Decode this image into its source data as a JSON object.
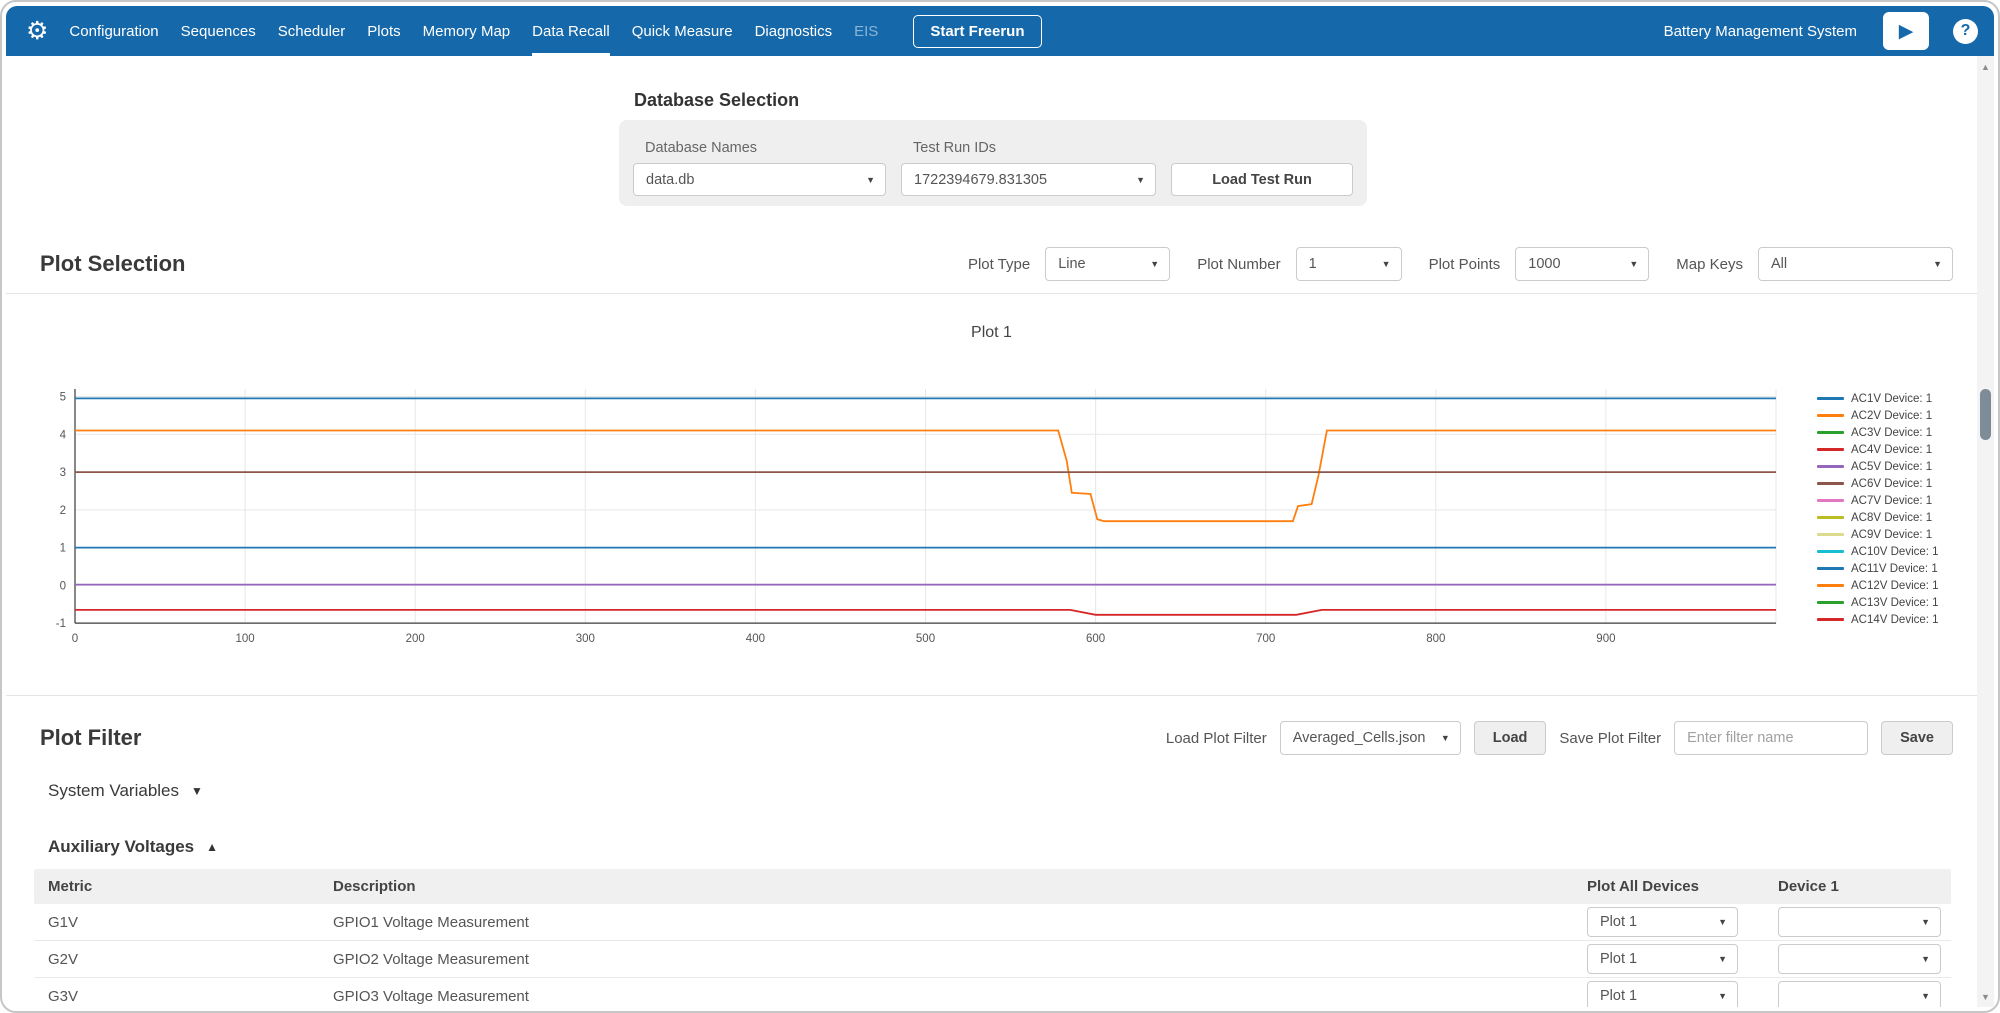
{
  "icons": {
    "gear": "⚙",
    "play": "▶",
    "help": "?",
    "caret_down": "▼",
    "collapse_expanded": "▲",
    "collapse_collapsed": "▼",
    "scroll_up": "▲",
    "scroll_down": "▼"
  },
  "colors": {
    "navbar_blue": "#1568a9",
    "panel_gray": "#efefef",
    "grid_gray": "#e7e7e7"
  },
  "navbar": {
    "brand": "Battery Management System",
    "start_freerun": "Start Freerun",
    "items": [
      {
        "label": "Configuration",
        "active": false,
        "disabled": false
      },
      {
        "label": "Sequences",
        "active": false,
        "disabled": false
      },
      {
        "label": "Scheduler",
        "active": false,
        "disabled": false
      },
      {
        "label": "Plots",
        "active": false,
        "disabled": false
      },
      {
        "label": "Memory Map",
        "active": false,
        "disabled": false
      },
      {
        "label": "Data Recall",
        "active": true,
        "disabled": false
      },
      {
        "label": "Quick Measure",
        "active": false,
        "disabled": false
      },
      {
        "label": "Diagnostics",
        "active": false,
        "disabled": false
      },
      {
        "label": "EIS",
        "active": false,
        "disabled": true
      }
    ]
  },
  "database_selection": {
    "title": "Database Selection",
    "database_names_label": "Database Names",
    "database_names_value": "data.db",
    "test_run_ids_label": "Test Run IDs",
    "test_run_ids_value": "1722394679.831305",
    "load_test_run": "Load Test Run"
  },
  "plot_selection": {
    "title": "Plot Selection",
    "controls": [
      {
        "label": "Plot Type",
        "value": "Line"
      },
      {
        "label": "Plot Number",
        "value": "1"
      },
      {
        "label": "Plot Points",
        "value": "1000"
      },
      {
        "label": "Map Keys",
        "value": "All"
      }
    ]
  },
  "chart_data": {
    "type": "line",
    "title": "Plot 1",
    "xlabel": "",
    "ylabel": "",
    "xlim": [
      0,
      1000
    ],
    "ylim": [
      -1.05,
      5.2
    ],
    "x_ticks": [
      0,
      100,
      200,
      300,
      400,
      500,
      600,
      700,
      800,
      900
    ],
    "y_ticks": [
      -1,
      0,
      1,
      2,
      3,
      4,
      5
    ],
    "grid": true,
    "legend_position": "right",
    "legend": [
      {
        "label": "AC1V Device: 1",
        "color": "#1f77b4"
      },
      {
        "label": "AC2V Device: 1",
        "color": "#ff7f0e"
      },
      {
        "label": "AC3V Device: 1",
        "color": "#2ca02c"
      },
      {
        "label": "AC4V Device: 1",
        "color": "#d62728"
      },
      {
        "label": "AC5V Device: 1",
        "color": "#9467bd"
      },
      {
        "label": "AC6V Device: 1",
        "color": "#8c564b"
      },
      {
        "label": "AC7V Device: 1",
        "color": "#e377c2"
      },
      {
        "label": "AC8V Device: 1",
        "color": "#bcbd22"
      },
      {
        "label": "AC9V Device: 1",
        "color": "#dbdb8d"
      },
      {
        "label": "AC10V Device: 1",
        "color": "#17becf"
      },
      {
        "label": "AC11V Device: 1",
        "color": "#1f77b4"
      },
      {
        "label": "AC12V Device: 1",
        "color": "#ff7f0e"
      },
      {
        "label": "AC13V Device: 1",
        "color": "#2ca02c"
      },
      {
        "label": "AC14V Device: 1",
        "color": "#d62728"
      }
    ],
    "series": [
      {
        "name": "AC1V Device: 1",
        "color": "#1f77b4",
        "points": [
          [
            0,
            4.95
          ],
          [
            1000,
            4.95
          ]
        ]
      },
      {
        "name": "AC2V Device: 1",
        "color": "#ff7f0e",
        "points": [
          [
            0,
            4.1
          ],
          [
            578,
            4.1
          ],
          [
            583,
            3.3
          ],
          [
            586,
            2.45
          ],
          [
            597,
            2.42
          ],
          [
            601,
            1.75
          ],
          [
            605,
            1.7
          ],
          [
            716,
            1.7
          ],
          [
            719,
            2.1
          ],
          [
            727,
            2.15
          ],
          [
            731,
            2.9
          ],
          [
            736,
            4.1
          ],
          [
            1000,
            4.1
          ]
        ]
      },
      {
        "name": "AC6V Device: 1",
        "color": "#8c564b",
        "points": [
          [
            0,
            3.0
          ],
          [
            1000,
            3.0
          ]
        ]
      },
      {
        "name": "AC11V Device: 1",
        "color": "#1f77b4",
        "points": [
          [
            0,
            1.0
          ],
          [
            1000,
            1.0
          ]
        ]
      },
      {
        "name": "AC5V Device: 1",
        "color": "#9467bd",
        "points": [
          [
            0,
            0.02
          ],
          [
            1000,
            0.02
          ]
        ]
      },
      {
        "name": "AC4V Device: 1",
        "color": "#d62728",
        "points": [
          [
            0,
            -0.65
          ],
          [
            585,
            -0.65
          ],
          [
            600,
            -0.78
          ],
          [
            718,
            -0.78
          ],
          [
            733,
            -0.65
          ],
          [
            1000,
            -0.65
          ]
        ]
      }
    ]
  },
  "plot_filter": {
    "title": "Plot Filter",
    "load_filter_label": "Load Plot Filter",
    "load_filter_value": "Averaged_Cells.json",
    "load_button": "Load",
    "save_filter_label": "Save Plot Filter",
    "save_placeholder": "Enter filter name",
    "save_button": "Save",
    "groups": [
      {
        "label": "System Variables",
        "expanded": false
      },
      {
        "label": "Auxiliary Voltages",
        "expanded": true
      }
    ],
    "table": {
      "headers": [
        "Metric",
        "Description",
        "Plot All Devices",
        "Device 1"
      ],
      "rows": [
        {
          "metric": "G1V",
          "description": "GPIO1 Voltage Measurement",
          "plot_all": "Plot 1",
          "device1": ""
        },
        {
          "metric": "G2V",
          "description": "GPIO2 Voltage Measurement",
          "plot_all": "Plot 1",
          "device1": ""
        },
        {
          "metric": "G3V",
          "description": "GPIO3 Voltage Measurement",
          "plot_all": "Plot 1",
          "device1": ""
        }
      ]
    }
  }
}
